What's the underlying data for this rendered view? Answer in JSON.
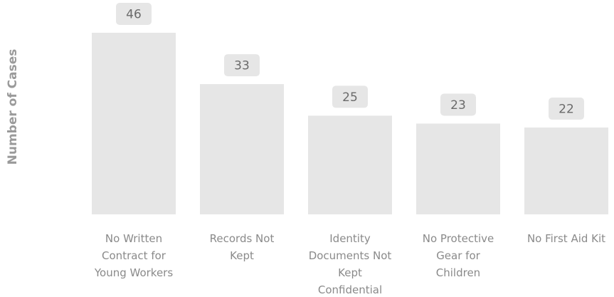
{
  "chart_data": {
    "type": "bar",
    "title": "",
    "xlabel": "",
    "ylabel": "Number of Cases",
    "categories": [
      "No Written Contract for Young Workers",
      "Records Not Kept",
      "Identity Documents Not Kept Confidential",
      "No Protective Gear for Children",
      "No First Aid Kit"
    ],
    "category_lines": [
      [
        "No Written",
        "Contract for",
        "Young Workers"
      ],
      [
        "Records Not",
        "Kept"
      ],
      [
        "Identity",
        "Documents Not",
        "Kept",
        "Confidential"
      ],
      [
        "No Protective",
        "Gear for",
        "Children"
      ],
      [
        "No First Aid Kit"
      ]
    ],
    "values": [
      46,
      33,
      25,
      23,
      22
    ],
    "ylim": [
      0,
      46
    ],
    "grid": false,
    "legend": "none",
    "colors": {
      "bar": "#e6e6e6",
      "label_bg": "#e6e6e6",
      "label_text": "#6a6a6a",
      "axis_text": "#8a8a8a",
      "ylabel_text": "#9a9a9a"
    }
  }
}
